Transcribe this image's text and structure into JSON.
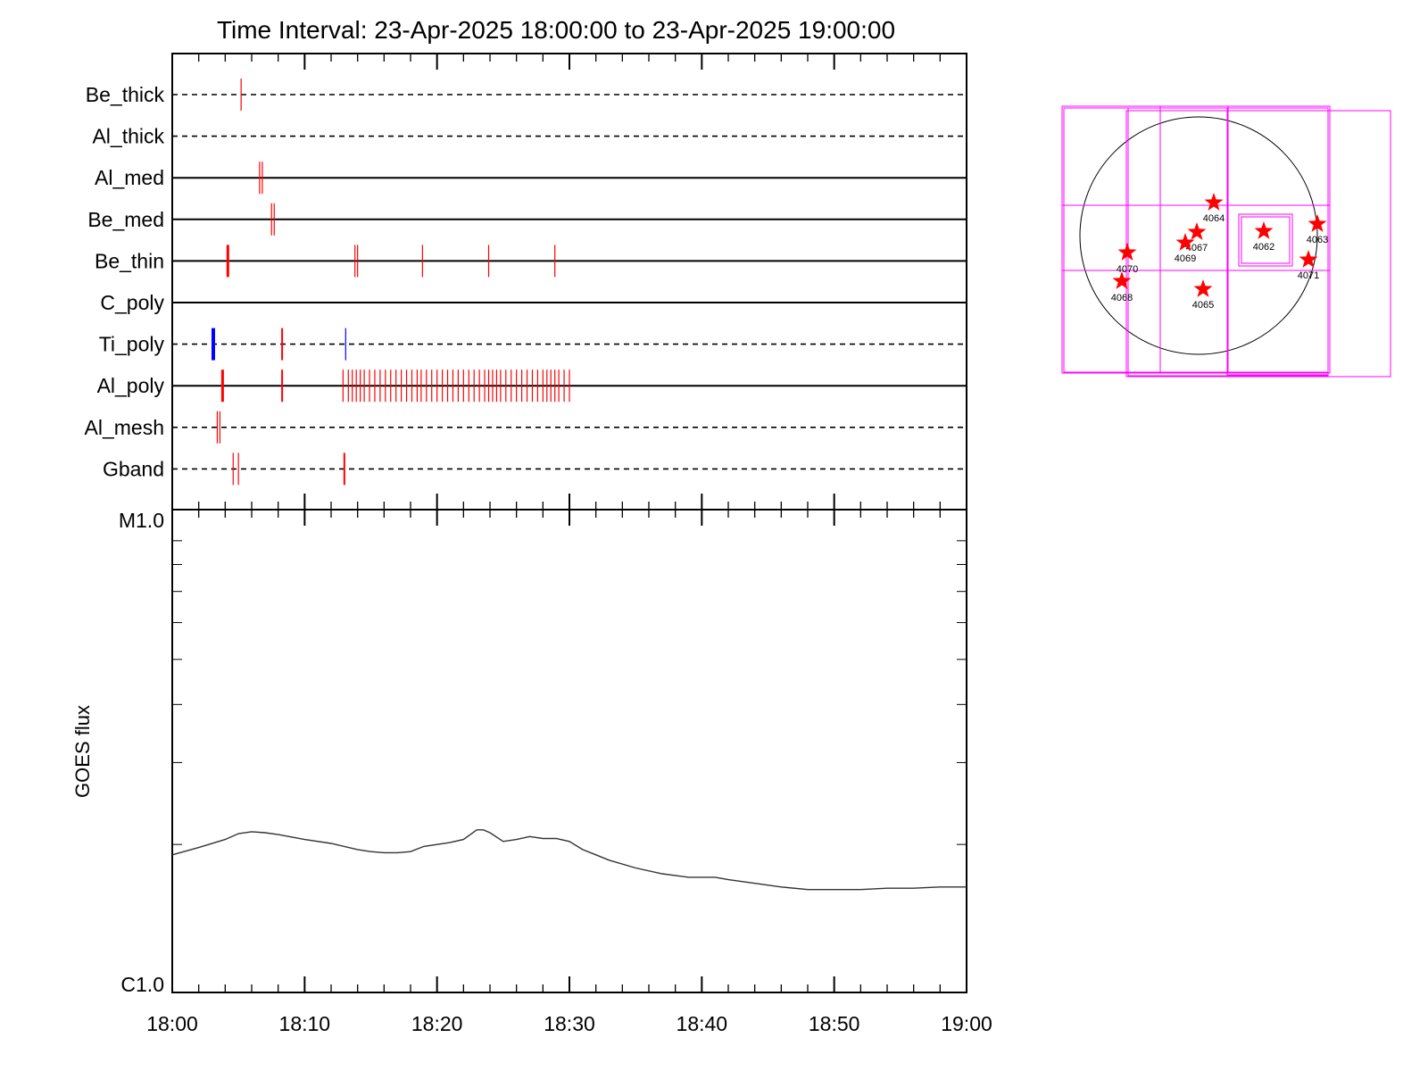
{
  "title": "Time Interval: 23-Apr-2025 18:00:00 to 23-Apr-2025 19:00:00",
  "filters": [
    {
      "name": "Be_thick",
      "line": "dashed",
      "events": [
        {
          "t": 5.2
        }
      ]
    },
    {
      "name": "Al_thick",
      "line": "dashed",
      "events": []
    },
    {
      "name": "Al_med",
      "line": "solid",
      "events": [
        {
          "t": 6.6
        },
        {
          "t": 6.8
        }
      ]
    },
    {
      "name": "Be_med",
      "line": "solid",
      "events": [
        {
          "t": 7.5
        },
        {
          "t": 7.7
        }
      ]
    },
    {
      "name": "Be_thin",
      "line": "solid",
      "events": [
        {
          "t": 4.2,
          "w": 3
        },
        {
          "t": 13.8
        },
        {
          "t": 14.0
        },
        {
          "t": 18.9
        },
        {
          "t": 23.9
        },
        {
          "t": 28.9
        }
      ]
    },
    {
      "name": "C_poly",
      "line": "solid",
      "events": []
    },
    {
      "name": "Ti_poly",
      "line": "dashed",
      "events": [
        {
          "t": 3.1,
          "w": 4,
          "c": "blue"
        },
        {
          "t": 8.3,
          "w": 2
        },
        {
          "t": 13.1,
          "c": "blue"
        }
      ]
    },
    {
      "name": "Al_poly",
      "line": "solid",
      "events": [
        {
          "t": 3.8,
          "w": 3
        },
        {
          "t": 8.3,
          "w": 2
        },
        {
          "t": 12.9
        },
        {
          "t": 13.3
        },
        {
          "t": 13.6
        },
        {
          "t": 13.9
        },
        {
          "t": 14.2
        },
        {
          "t": 14.5
        },
        {
          "t": 14.9
        },
        {
          "t": 15.3
        },
        {
          "t": 15.7
        },
        {
          "t": 16.1
        },
        {
          "t": 16.5
        },
        {
          "t": 16.9
        },
        {
          "t": 17.3
        },
        {
          "t": 17.7
        },
        {
          "t": 18.1
        },
        {
          "t": 18.5
        },
        {
          "t": 18.8
        },
        {
          "t": 19.2
        },
        {
          "t": 19.6
        },
        {
          "t": 20.0
        },
        {
          "t": 20.4
        },
        {
          "t": 20.8
        },
        {
          "t": 21.2
        },
        {
          "t": 21.6
        },
        {
          "t": 22.0
        },
        {
          "t": 22.4
        },
        {
          "t": 22.8
        },
        {
          "t": 23.2
        },
        {
          "t": 23.6
        },
        {
          "t": 23.9
        },
        {
          "t": 24.2
        },
        {
          "t": 24.5
        },
        {
          "t": 24.8
        },
        {
          "t": 25.2
        },
        {
          "t": 25.6
        },
        {
          "t": 26.0
        },
        {
          "t": 26.4
        },
        {
          "t": 26.8
        },
        {
          "t": 27.2
        },
        {
          "t": 27.6
        },
        {
          "t": 28.0
        },
        {
          "t": 28.3
        },
        {
          "t": 28.6
        },
        {
          "t": 28.9
        },
        {
          "t": 29.2
        },
        {
          "t": 29.6
        },
        {
          "t": 30.0
        }
      ]
    },
    {
      "name": "Al_mesh",
      "line": "dashed",
      "events": [
        {
          "t": 3.4
        },
        {
          "t": 3.6
        }
      ]
    },
    {
      "name": "Gband",
      "line": "dashed",
      "events": [
        {
          "t": 4.6
        },
        {
          "t": 5.0
        },
        {
          "t": 13.0,
          "w": 2
        }
      ]
    }
  ],
  "chart_data": [
    {
      "type": "line",
      "title": "",
      "xlabel": "",
      "ylabel": "GOES flux",
      "ylabel_ticks": [
        "M1.0",
        "C1.0"
      ],
      "ylim": [
        1e-06,
        1e-05
      ],
      "yscale": "log",
      "xlim": [
        0,
        60
      ],
      "x_tick_labels": [
        "18:00",
        "18:10",
        "18:20",
        "18:30",
        "18:40",
        "18:50",
        "19:00"
      ],
      "series": [
        {
          "x": [
            0,
            2,
            4,
            5,
            6,
            7,
            8,
            10,
            12,
            14,
            15,
            16,
            17,
            18,
            19,
            20,
            21,
            22,
            23,
            23.5,
            24,
            25,
            26,
            27,
            28,
            29,
            30,
            31,
            32,
            33,
            35,
            37,
            39,
            41,
            42,
            44,
            46,
            48,
            49,
            50,
            52,
            54,
            56,
            58,
            60
          ],
          "y": [
            1.9e-06,
            1.97e-06,
            2.05e-06,
            2.11e-06,
            2.13e-06,
            2.12e-06,
            2.1e-06,
            2.05e-06,
            2.01e-06,
            1.95e-06,
            1.93e-06,
            1.92e-06,
            1.92e-06,
            1.93e-06,
            1.98e-06,
            2e-06,
            2.02e-06,
            2.05e-06,
            2.15e-06,
            2.15e-06,
            2.12e-06,
            2.03e-06,
            2.05e-06,
            2.08e-06,
            2.06e-06,
            2.06e-06,
            2.03e-06,
            1.95e-06,
            1.9e-06,
            1.85e-06,
            1.78e-06,
            1.73e-06,
            1.7e-06,
            1.7e-06,
            1.68e-06,
            1.65e-06,
            1.62e-06,
            1.6e-06,
            1.6e-06,
            1.6e-06,
            1.6e-06,
            1.61e-06,
            1.61e-06,
            1.62e-06,
            1.62e-06
          ]
        }
      ]
    }
  ],
  "map": {
    "regions": [
      "4064",
      "4063",
      "4067",
      "4062",
      "4069",
      "4070",
      "4071",
      "4068",
      "4065"
    ],
    "colors": {
      "frame": "#ff00ff",
      "star": "#ff0000",
      "disk": "#000000"
    }
  }
}
